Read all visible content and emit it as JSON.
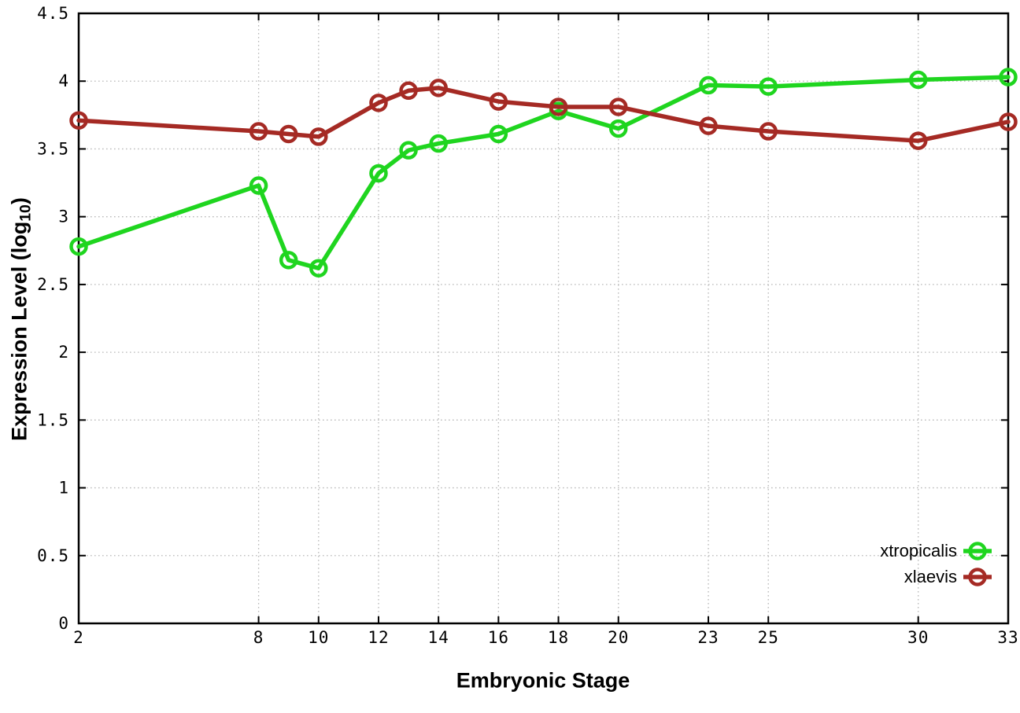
{
  "chart_data": {
    "type": "line",
    "title": "",
    "xlabel": "Embryonic Stage",
    "ylabel": "Expression Level (log10)",
    "ylabel_parts": {
      "main": "Expression Level (log",
      "sub": "10",
      "end": ")"
    },
    "x": [
      2,
      8,
      9,
      10,
      12,
      13,
      14,
      16,
      18,
      20,
      23,
      25,
      30,
      33
    ],
    "series": [
      {
        "name": "xtropicalis",
        "color": "#1fd51f",
        "marker": "open-circle",
        "values": [
          2.78,
          3.23,
          2.68,
          2.62,
          3.32,
          3.49,
          3.54,
          3.61,
          3.78,
          3.65,
          3.97,
          3.96,
          4.01,
          4.03
        ]
      },
      {
        "name": "xlaevis",
        "color": "#a52a24",
        "marker": "open-circle",
        "values": [
          3.71,
          3.63,
          3.61,
          3.59,
          3.84,
          3.93,
          3.95,
          3.85,
          3.81,
          3.81,
          3.67,
          3.63,
          3.56,
          3.7
        ]
      }
    ],
    "xlim": [
      2,
      33
    ],
    "ylim": [
      0,
      4.5
    ],
    "xtick_values": [
      2,
      8,
      10,
      12,
      14,
      16,
      18,
      20,
      23,
      25,
      30,
      33
    ],
    "xtick_labels": [
      "2",
      "8",
      "10",
      "12",
      "14",
      "16",
      "18",
      "20",
      "23",
      "25",
      "30",
      "33"
    ],
    "ytick_values": [
      0,
      0.5,
      1,
      1.5,
      2,
      2.5,
      3,
      3.5,
      4,
      4.5
    ],
    "ytick_labels": [
      "0",
      "0.5",
      "1",
      "1.5",
      "2",
      "2.5",
      "3",
      "3.5",
      "4",
      "4.5"
    ],
    "grid": true,
    "grid_style": "dotted",
    "legend_position": "bottom-right-inside",
    "legend_entries": [
      "xtropicalis",
      "xlaevis"
    ],
    "colors": {
      "background": "#ffffff",
      "border": "#000000",
      "grid": "#b9b9b9",
      "tick_text": "#000000"
    }
  }
}
